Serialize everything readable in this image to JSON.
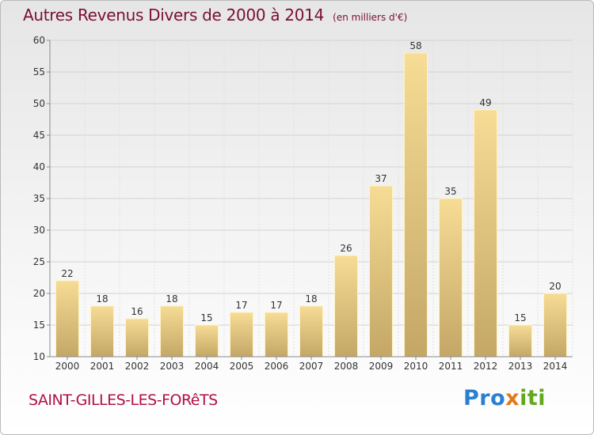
{
  "title": "Autres Revenus Divers de 2000 à 2014",
  "unit_note": "(en milliers d'€)",
  "commune": "SAINT-GILLES-LES-FORêTS",
  "brand": {
    "p1": "Pro",
    "p2": "x",
    "p3": "iti"
  },
  "colors": {
    "title": "#7a1030",
    "commune": "#b01048",
    "bar": "#f1d78c",
    "bar_dark": "#c9ab6a"
  },
  "chart_data": {
    "type": "bar",
    "categories": [
      "2000",
      "2001",
      "2002",
      "2003",
      "2004",
      "2005",
      "2006",
      "2007",
      "2008",
      "2009",
      "2010",
      "2011",
      "2012",
      "2013",
      "2014"
    ],
    "values": [
      22,
      18,
      16,
      18,
      15,
      17,
      17,
      18,
      26,
      37,
      58,
      35,
      49,
      15,
      20
    ],
    "ylim": [
      10,
      60
    ],
    "yticks": [
      10,
      15,
      20,
      25,
      30,
      35,
      40,
      45,
      50,
      55,
      60
    ],
    "grid": true,
    "data_labels": true
  }
}
